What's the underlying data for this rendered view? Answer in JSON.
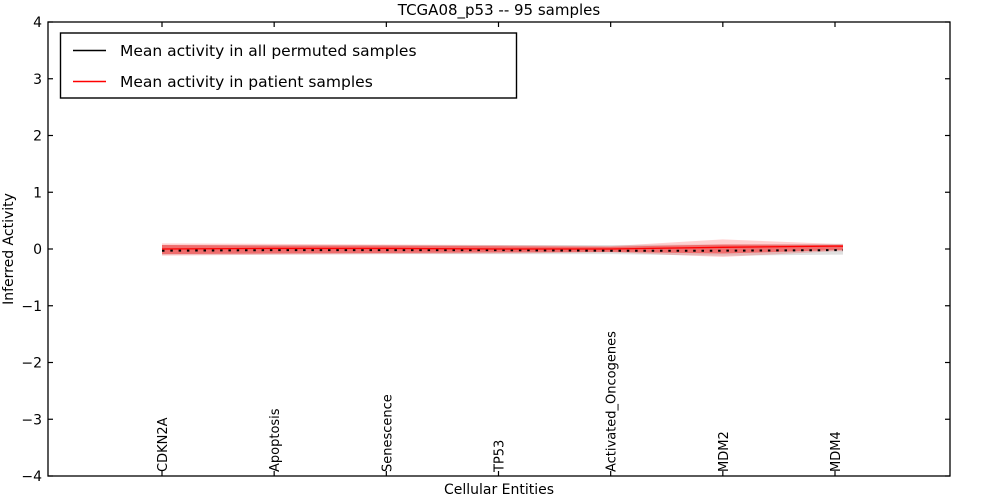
{
  "chart_data": {
    "type": "line",
    "title": "TCGA08_p53 -- 95 samples",
    "xlabel": "Cellular Entities",
    "ylabel": "Inferred Activity",
    "ylim": [
      -4,
      4
    ],
    "yticks": [
      -4,
      -3,
      -2,
      -1,
      0,
      1,
      2,
      3,
      4
    ],
    "grid": false,
    "categories": [
      "CDKN2A",
      "Apoptosis",
      "Senescence",
      "TP53",
      "Activated_Oncogenes",
      "MDM2",
      "MDM4"
    ],
    "legend_position": "upper left",
    "legend": [
      {
        "label": "Mean activity in all permuted samples",
        "color": "#000000",
        "style": "dashed"
      },
      {
        "label": "Mean activity in patient samples",
        "color": "#ff0000",
        "style": "solid"
      }
    ],
    "series": [
      {
        "name": "Mean activity in all permuted samples",
        "color": "#000000",
        "style": "dashed",
        "values": [
          -0.03,
          -0.02,
          -0.02,
          -0.02,
          -0.03,
          -0.03,
          -0.02
        ]
      },
      {
        "name": "Mean activity in patient samples",
        "color": "#ff0000",
        "style": "solid",
        "values": [
          0.0,
          0.01,
          0.01,
          0.0,
          0.0,
          0.03,
          0.05
        ]
      }
    ],
    "bands": [
      {
        "name": "permuted-samples-std-band",
        "color": "#8c8c8c",
        "opacity": 0.28,
        "upper": [
          0.07,
          0.07,
          0.07,
          0.07,
          0.07,
          0.08,
          0.09
        ],
        "lower": [
          -0.1,
          -0.1,
          -0.09,
          -0.09,
          -0.09,
          -0.12,
          -0.1
        ]
      },
      {
        "name": "patient-samples-std-band-outer",
        "color": "#ff0000",
        "opacity": 0.18,
        "upper": [
          0.1,
          0.09,
          0.08,
          0.07,
          0.05,
          0.17,
          0.09
        ],
        "lower": [
          -0.12,
          -0.1,
          -0.09,
          -0.08,
          -0.06,
          -0.14,
          -0.04
        ]
      },
      {
        "name": "patient-samples-std-band-inner",
        "color": "#ff0000",
        "opacity": 0.4,
        "upper": [
          0.07,
          0.06,
          0.06,
          0.05,
          0.04,
          0.08,
          0.07
        ],
        "lower": [
          -0.09,
          -0.08,
          -0.07,
          -0.06,
          -0.05,
          -0.08,
          -0.02
        ]
      }
    ]
  }
}
